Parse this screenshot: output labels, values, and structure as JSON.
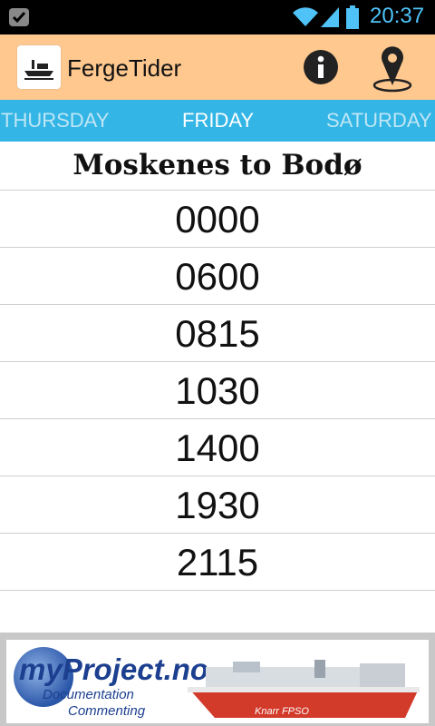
{
  "status_bar": {
    "time": "20:37",
    "time_color": "#4fc3f7"
  },
  "app": {
    "title": "FergeTider",
    "accent": "#ffc88f"
  },
  "tabs": {
    "prev": "THURSDAY",
    "current": "FRIDAY",
    "next": "SATURDAY",
    "color": "#33b5e5"
  },
  "route": {
    "title": "Moskenes to Bodø"
  },
  "times": [
    "0000",
    "0600",
    "0815",
    "1030",
    "1400",
    "1930",
    "2115"
  ],
  "ad": {
    "brand": "myProject.no",
    "line1": "Documentation",
    "line2": "Commenting",
    "ship_label": "Knarr FPSO"
  }
}
